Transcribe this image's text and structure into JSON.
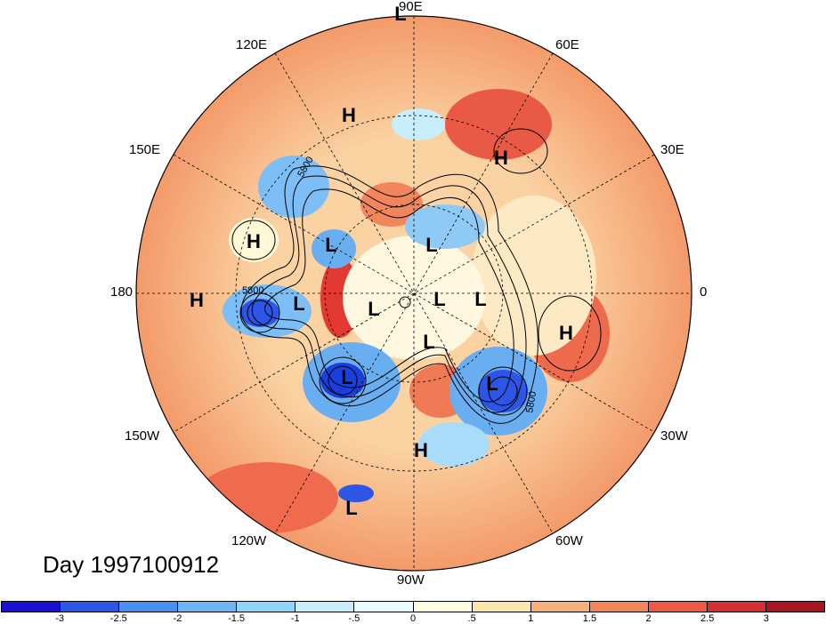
{
  "title": "Day 1997100912",
  "lon_labels": [
    "90E",
    "60E",
    "30E",
    "0",
    "30W",
    "60W",
    "90W",
    "120W",
    "150W",
    "180",
    "150E",
    "120E"
  ],
  "contour_labels": [
    "5800",
    "5800",
    "5800"
  ],
  "centers": [
    {
      "t": "H"
    },
    {
      "t": "H"
    },
    {
      "t": "H"
    },
    {
      "t": "H"
    },
    {
      "t": "H"
    },
    {
      "t": "H"
    },
    {
      "t": "L"
    },
    {
      "t": "L"
    },
    {
      "t": "L"
    },
    {
      "t": "L"
    },
    {
      "t": "L"
    },
    {
      "t": "L"
    },
    {
      "t": "L"
    },
    {
      "t": "L"
    },
    {
      "t": "L"
    },
    {
      "t": "L"
    },
    {
      "t": "L"
    }
  ],
  "colorbar": {
    "colors": [
      "#1b0fd6",
      "#2d55e6",
      "#4b8ff2",
      "#6db5f7",
      "#8fd6fa",
      "#c8eefc",
      "#eafafe",
      "#fffde0",
      "#fce5a8",
      "#f8b07a",
      "#f38658",
      "#ec5a43",
      "#d42f32",
      "#a8141f"
    ],
    "ticks": [
      "-3",
      "-2.5",
      "-2",
      "-1.5",
      "-1",
      "-.5",
      "0",
      ".5",
      "1",
      "1.5",
      "2",
      "2.5",
      "3"
    ]
  }
}
